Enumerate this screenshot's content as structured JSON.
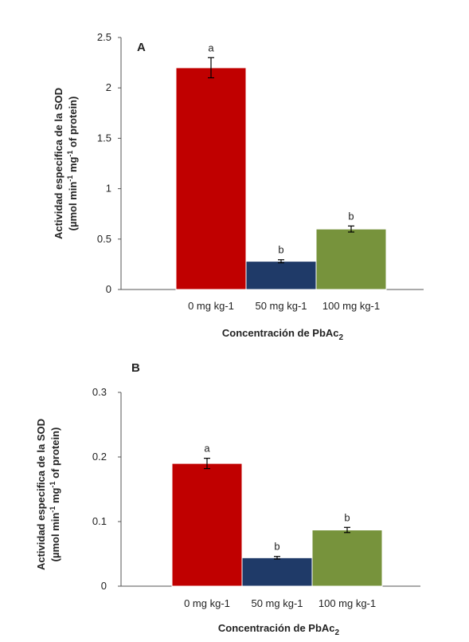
{
  "colors": {
    "bar_0": "#c00000",
    "bar_50": "#1f3a68",
    "bar_100": "#77933c"
  },
  "chart_data": [
    {
      "type": "bar",
      "panel_label": "A",
      "categories": [
        "0 mg kg-1",
        "50 mg kg-1",
        "100 mg kg-1"
      ],
      "values": [
        2.2,
        0.28,
        0.6
      ],
      "errors": [
        0.1,
        0.015,
        0.03
      ],
      "significance": [
        "a",
        "b",
        "b"
      ],
      "ylim": [
        0,
        2.5
      ],
      "yticks": [
        "0",
        "0.5",
        "1",
        "1.5",
        "2",
        "2.5"
      ],
      "ylabel_line1": "Actividad especifica de la SOD",
      "ylabel_line2_a": "(µmol min",
      "ylabel_sup1": "-1",
      "ylabel_line2_b": " mg",
      "ylabel_sup2": "-1",
      "ylabel_line2_c": " of protein)",
      "xlabel_main": "Concentración de PbAc",
      "xlabel_sub": "2"
    },
    {
      "type": "bar",
      "panel_label": "B",
      "categories": [
        "0 mg kg-1",
        "50 mg kg-1",
        "100 mg kg-1"
      ],
      "values": [
        0.19,
        0.044,
        0.087
      ],
      "errors": [
        0.008,
        0.002,
        0.004
      ],
      "significance": [
        "a",
        "b",
        "b"
      ],
      "ylim": [
        0,
        0.3
      ],
      "yticks": [
        "0",
        "0.1",
        "0.2",
        "0.3"
      ],
      "ylabel_line1": "Actividad especifica de la SOD",
      "ylabel_line2_a": "(µmol min",
      "ylabel_sup1": "-1",
      "ylabel_line2_b": " mg",
      "ylabel_sup2": "-1",
      "ylabel_line2_c": " of protein)",
      "xlabel_main": "Concentración  de PbAc",
      "xlabel_sub": "2"
    }
  ]
}
